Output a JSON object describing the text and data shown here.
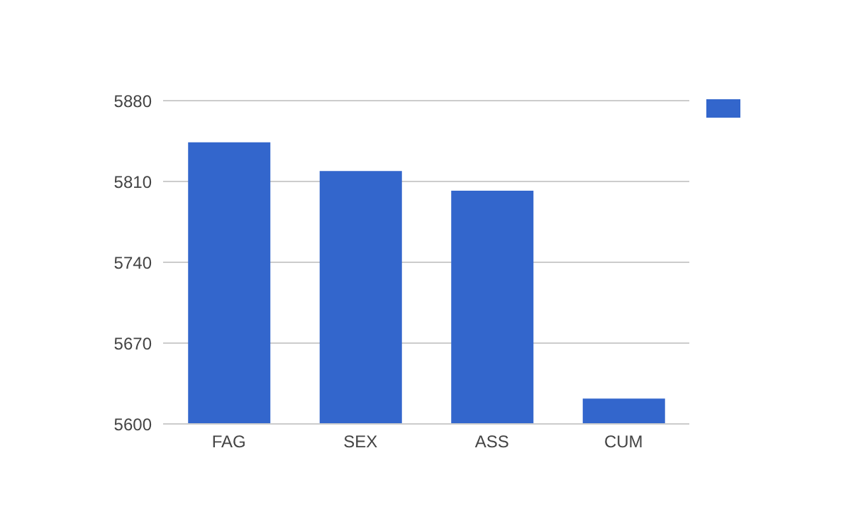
{
  "chart_data": {
    "type": "bar",
    "categories": [
      "FAG",
      "SEX",
      "ASS",
      "CUM"
    ],
    "series": [
      {
        "color": "#3366cc",
        "values": [
          5844,
          5819,
          5802,
          5622
        ]
      }
    ],
    "ylim": [
      5600,
      5880
    ],
    "yticks": [
      5600,
      5670,
      5740,
      5810,
      5880
    ],
    "grid": "y"
  }
}
